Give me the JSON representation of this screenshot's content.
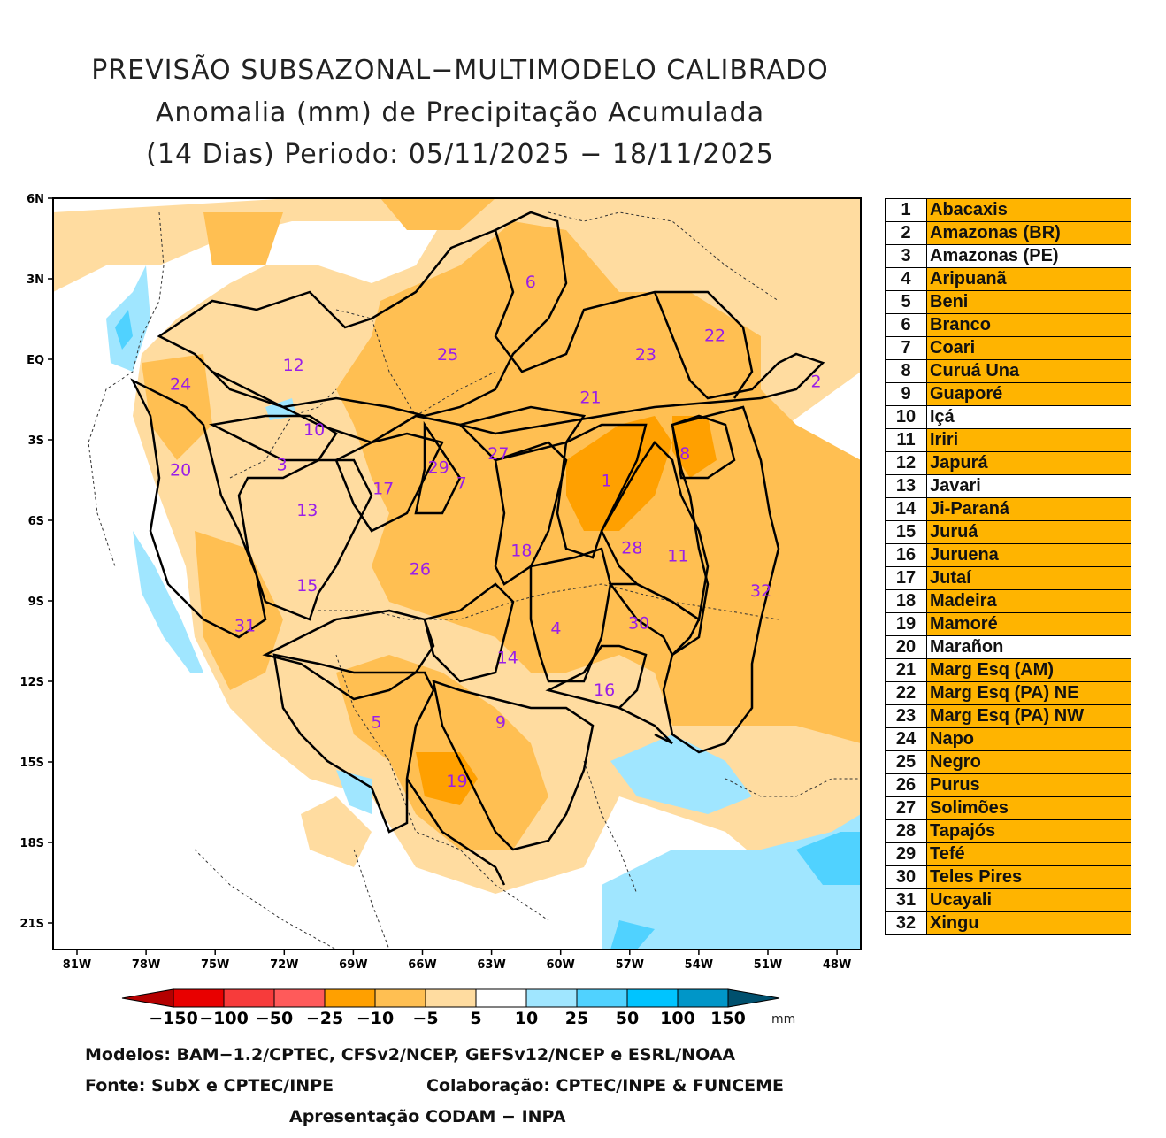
{
  "title": {
    "line1": "PREVISÃO SUBSAZONAL−MULTIMODELO CALIBRADO",
    "line2": "Anomalia (mm) de Precipitação Acumulada",
    "line3": "(14 Dias) Periodo: 05/11/2025 − 18/11/2025"
  },
  "map": {
    "lat_labels": [
      "6N",
      "3N",
      "EQ",
      "3S",
      "6S",
      "9S",
      "12S",
      "15S",
      "18S",
      "21S"
    ],
    "lon_labels": [
      "81W",
      "78W",
      "75W",
      "72W",
      "69W",
      "66W",
      "63W",
      "60W",
      "57W",
      "54W",
      "51W",
      "48W"
    ],
    "region_labels": [
      {
        "n": "1",
        "lon": -58.0,
        "lat": -4.5
      },
      {
        "n": "2",
        "lon": -48.9,
        "lat": -0.8
      },
      {
        "n": "3",
        "lon": -72.1,
        "lat": -3.9
      },
      {
        "n": "4",
        "lon": -60.2,
        "lat": -10.0
      },
      {
        "n": "5",
        "lon": -68.0,
        "lat": -13.5
      },
      {
        "n": "6",
        "lon": -61.3,
        "lat": 2.9
      },
      {
        "n": "7",
        "lon": -64.3,
        "lat": -4.6
      },
      {
        "n": "8",
        "lon": -54.6,
        "lat": -3.5
      },
      {
        "n": "9",
        "lon": -62.6,
        "lat": -13.5
      },
      {
        "n": "10",
        "lon": -70.7,
        "lat": -2.6
      },
      {
        "n": "11",
        "lon": -54.9,
        "lat": -7.3
      },
      {
        "n": "12",
        "lon": -71.6,
        "lat": -0.2
      },
      {
        "n": "13",
        "lon": -71.0,
        "lat": -5.6
      },
      {
        "n": "14",
        "lon": -62.3,
        "lat": -11.1
      },
      {
        "n": "15",
        "lon": -71.0,
        "lat": -8.4
      },
      {
        "n": "16",
        "lon": -58.1,
        "lat": -12.3
      },
      {
        "n": "17",
        "lon": -67.7,
        "lat": -4.8
      },
      {
        "n": "18",
        "lon": -61.7,
        "lat": -7.1
      },
      {
        "n": "19",
        "lon": -64.5,
        "lat": -15.7
      },
      {
        "n": "20",
        "lon": -76.5,
        "lat": -4.1
      },
      {
        "n": "21",
        "lon": -58.7,
        "lat": -1.4
      },
      {
        "n": "22",
        "lon": -53.3,
        "lat": 0.9
      },
      {
        "n": "23",
        "lon": -56.3,
        "lat": 0.2
      },
      {
        "n": "24",
        "lon": -76.5,
        "lat": -0.9
      },
      {
        "n": "25",
        "lon": -64.9,
        "lat": 0.2
      },
      {
        "n": "26",
        "lon": -66.1,
        "lat": -7.8
      },
      {
        "n": "27",
        "lon": -62.7,
        "lat": -3.5
      },
      {
        "n": "28",
        "lon": -56.9,
        "lat": -7.0
      },
      {
        "n": "29",
        "lon": -65.3,
        "lat": -4.0
      },
      {
        "n": "30",
        "lon": -56.6,
        "lat": -9.8
      },
      {
        "n": "31",
        "lon": -73.7,
        "lat": -9.9
      },
      {
        "n": "32",
        "lon": -51.3,
        "lat": -8.6
      }
    ]
  },
  "legend": [
    {
      "num": "1",
      "name": "Abacaxis",
      "color": "#ffb400"
    },
    {
      "num": "2",
      "name": "Amazonas (BR)",
      "color": "#ffb400"
    },
    {
      "num": "3",
      "name": "Amazonas (PE)",
      "color": "#ffffff"
    },
    {
      "num": "4",
      "name": "Aripuanã",
      "color": "#ffb400"
    },
    {
      "num": "5",
      "name": "Beni",
      "color": "#ffb400"
    },
    {
      "num": "6",
      "name": "Branco",
      "color": "#ffb400"
    },
    {
      "num": "7",
      "name": "Coari",
      "color": "#ffb400"
    },
    {
      "num": "8",
      "name": "Curuá Una",
      "color": "#ffb400"
    },
    {
      "num": "9",
      "name": "Guaporé",
      "color": "#ffb400"
    },
    {
      "num": "10",
      "name": "Içá",
      "color": "#ffffff"
    },
    {
      "num": "11",
      "name": "Iriri",
      "color": "#ffb400"
    },
    {
      "num": "12",
      "name": "Japurá",
      "color": "#ffb400"
    },
    {
      "num": "13",
      "name": "Javari",
      "color": "#ffffff"
    },
    {
      "num": "14",
      "name": "Ji-Paraná",
      "color": "#ffb400"
    },
    {
      "num": "15",
      "name": "Juruá",
      "color": "#ffb400"
    },
    {
      "num": "16",
      "name": "Juruena",
      "color": "#ffb400"
    },
    {
      "num": "17",
      "name": "Jutaí",
      "color": "#ffb400"
    },
    {
      "num": "18",
      "name": "Madeira",
      "color": "#ffb400"
    },
    {
      "num": "19",
      "name": "Mamoré",
      "color": "#ffb400"
    },
    {
      "num": "20",
      "name": "Marañon",
      "color": "#ffffff"
    },
    {
      "num": "21",
      "name": "Marg Esq (AM)",
      "color": "#ffb400"
    },
    {
      "num": "22",
      "name": "Marg Esq (PA) NE",
      "color": "#ffb400"
    },
    {
      "num": "23",
      "name": "Marg Esq (PA) NW",
      "color": "#ffb400"
    },
    {
      "num": "24",
      "name": "Napo",
      "color": "#ffb400"
    },
    {
      "num": "25",
      "name": "Negro",
      "color": "#ffb400"
    },
    {
      "num": "26",
      "name": "Purus",
      "color": "#ffb400"
    },
    {
      "num": "27",
      "name": "Solimões",
      "color": "#ffb400"
    },
    {
      "num": "28",
      "name": "Tapajós",
      "color": "#ffb400"
    },
    {
      "num": "29",
      "name": "Tefé",
      "color": "#ffb400"
    },
    {
      "num": "30",
      "name": "Teles Pires",
      "color": "#ffb400"
    },
    {
      "num": "31",
      "name": "Ucayali",
      "color": "#ffb400"
    },
    {
      "num": "32",
      "name": "Xingu",
      "color": "#ffb400"
    }
  ],
  "colorbar": {
    "labels": [
      "−150",
      "−100",
      "−50",
      "−25",
      "−10",
      "−5",
      "5",
      "10",
      "25",
      "50",
      "100",
      "150"
    ],
    "colors": [
      "#e80000",
      "#f73b3b",
      "#ff5a5a",
      "#ffa000",
      "#ffbf52",
      "#ffdca0",
      "#ffffff",
      "#a0e6ff",
      "#50d2ff",
      "#00c4ff",
      "#0096c8",
      "#007896"
    ],
    "low_color": "#b40000",
    "high_color": "#00506e",
    "unit": "mm"
  },
  "footer": {
    "models": "Modelos: BAM−1.2/CPTEC, CFSv2/NCEP, GEFSv12/NCEP e ESRL/NOAA",
    "source": "Fonte: SubX e CPTEC/INPE",
    "collab": "Colaboração: CPTEC/INPE & FUNCEME",
    "presentation": "Apresentação CODAM − INPA"
  }
}
